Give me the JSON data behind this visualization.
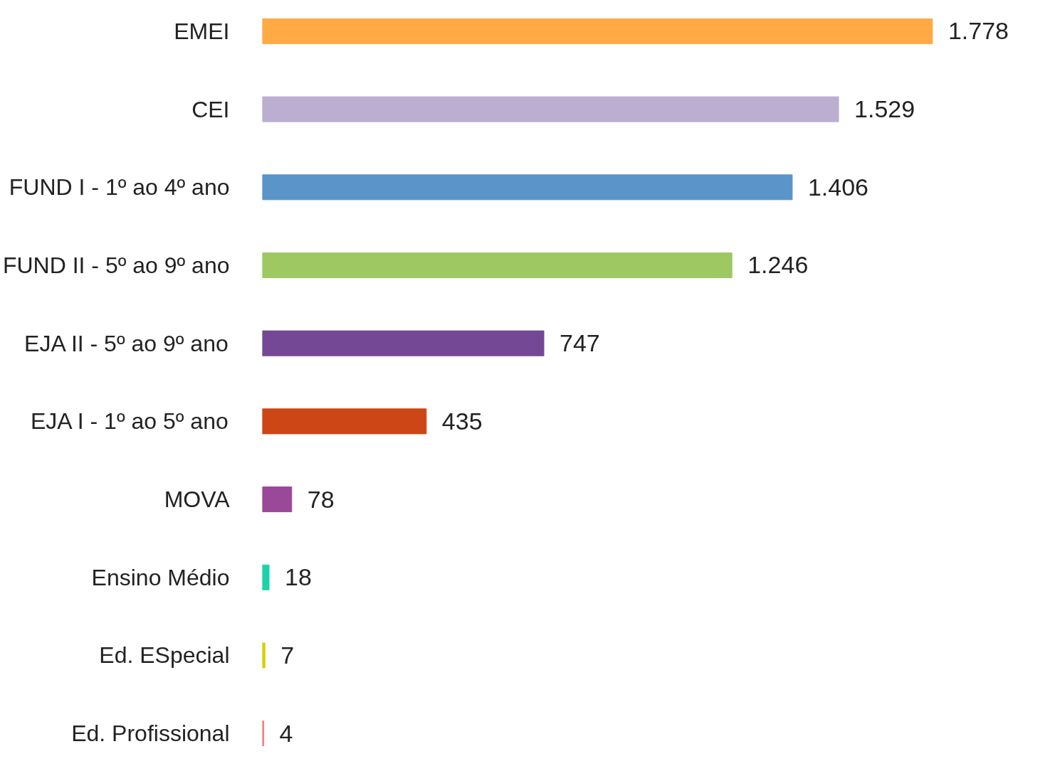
{
  "chart_data": {
    "type": "bar",
    "orientation": "horizontal",
    "categories": [
      "EMEI",
      "CEI",
      "FUND I - 1º ao 4º ano",
      "FUND II - 5º ao 9º ano",
      "EJA II - 5º ao 9º ano",
      "EJA I - 1º ao 5º ano",
      "MOVA",
      "Ensino Médio",
      "Ed. ESpecial",
      "Ed. Profissional"
    ],
    "values": [
      1778,
      1529,
      1406,
      1246,
      747,
      435,
      78,
      18,
      7,
      4
    ],
    "value_labels": [
      "1.778",
      "1.529",
      "1.406",
      "1.246",
      "747",
      "435",
      "78",
      "18",
      "7",
      "4"
    ],
    "colors": [
      "#ffaa44",
      "#bcaed0",
      "#5b94c8",
      "#9dc862",
      "#744895",
      "#cc4616",
      "#9a4898",
      "#1cd3a8",
      "#d4d000",
      "#f08080"
    ],
    "grid": false
  }
}
